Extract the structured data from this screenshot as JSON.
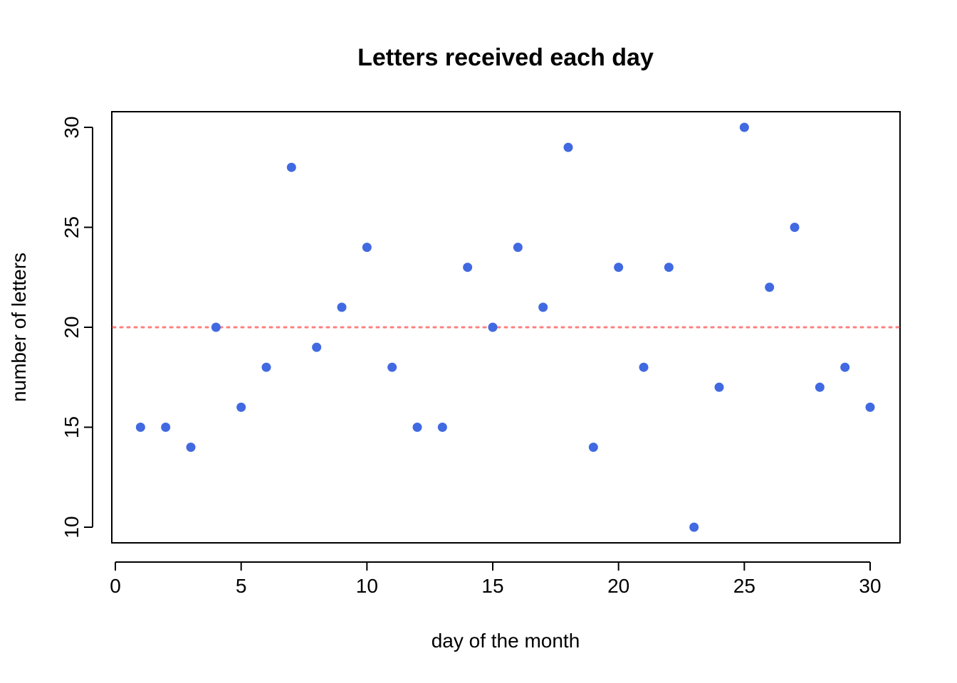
{
  "chart_data": {
    "type": "scatter",
    "title": "Letters received each day",
    "xlabel": "day of the month",
    "ylabel": "number of letters",
    "xlim": [
      0,
      30
    ],
    "ylim": [
      10,
      30
    ],
    "x_ticks": [
      0,
      5,
      10,
      15,
      20,
      25,
      30
    ],
    "y_ticks": [
      10,
      15,
      20,
      25,
      30
    ],
    "grid": false,
    "point_color": "#4169E1",
    "reference_line": {
      "y": 20,
      "style": "dotted",
      "color": "#FF7F7F"
    },
    "x": [
      1,
      2,
      3,
      4,
      5,
      6,
      7,
      8,
      9,
      10,
      11,
      12,
      13,
      14,
      15,
      16,
      17,
      18,
      19,
      20,
      21,
      22,
      23,
      24,
      25,
      26,
      27,
      28,
      29,
      30
    ],
    "y": [
      15,
      15,
      14,
      20,
      16,
      18,
      28,
      19,
      21,
      24,
      18,
      15,
      15,
      23,
      20,
      24,
      21,
      29,
      14,
      23,
      18,
      23,
      10,
      17,
      30,
      22,
      25,
      17,
      18,
      16
    ]
  }
}
